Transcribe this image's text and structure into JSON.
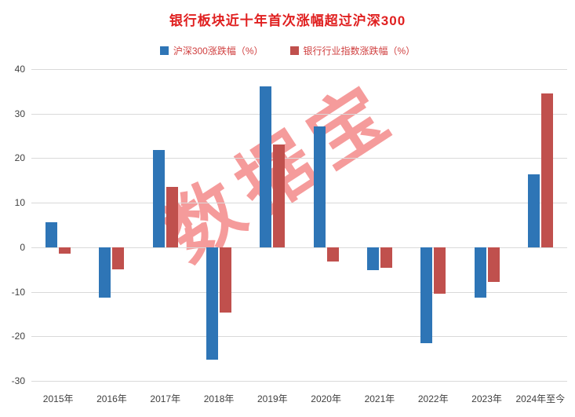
{
  "title": "银行板块近十年首次涨幅超过沪深300",
  "watermark": {
    "text": "数据宝"
  },
  "colors": {
    "title": "#E02020",
    "legend_text": "#D04040",
    "bar_blue": "#2E75B6",
    "bar_red": "#C0504D",
    "gridline": "#D9D9D9",
    "watermark": "rgba(235,45,45,0.48)"
  },
  "legend": [
    {
      "label": "沪深300涨跌幅（%）",
      "color": "#2E75B6"
    },
    {
      "label": "银行行业指数涨跌幅（%）",
      "color": "#C0504D"
    }
  ],
  "chart_data": {
    "type": "bar",
    "title": "银行板块近十年首次涨幅超过沪深300",
    "categories": [
      "2015年",
      "2016年",
      "2017年",
      "2018年",
      "2019年",
      "2020年",
      "2021年",
      "2022年",
      "2023年",
      "2024年至今"
    ],
    "series": [
      {
        "name": "沪深300涨跌幅（%）",
        "color": "#2E75B6",
        "values": [
          5.6,
          -11.3,
          21.8,
          -25.3,
          36.1,
          27.2,
          -5.2,
          -21.6,
          -11.4,
          16.3
        ]
      },
      {
        "name": "银行行业指数涨跌幅（%）",
        "color": "#C0504D",
        "values": [
          -1.5,
          -5.0,
          13.5,
          -14.7,
          23.0,
          -3.2,
          -4.6,
          -10.5,
          -7.7,
          34.5
        ]
      }
    ],
    "xlabel": "",
    "ylabel": "",
    "ylim": [
      -30,
      40
    ],
    "ytick_step": 10,
    "grid": true,
    "legend_position": "top"
  }
}
